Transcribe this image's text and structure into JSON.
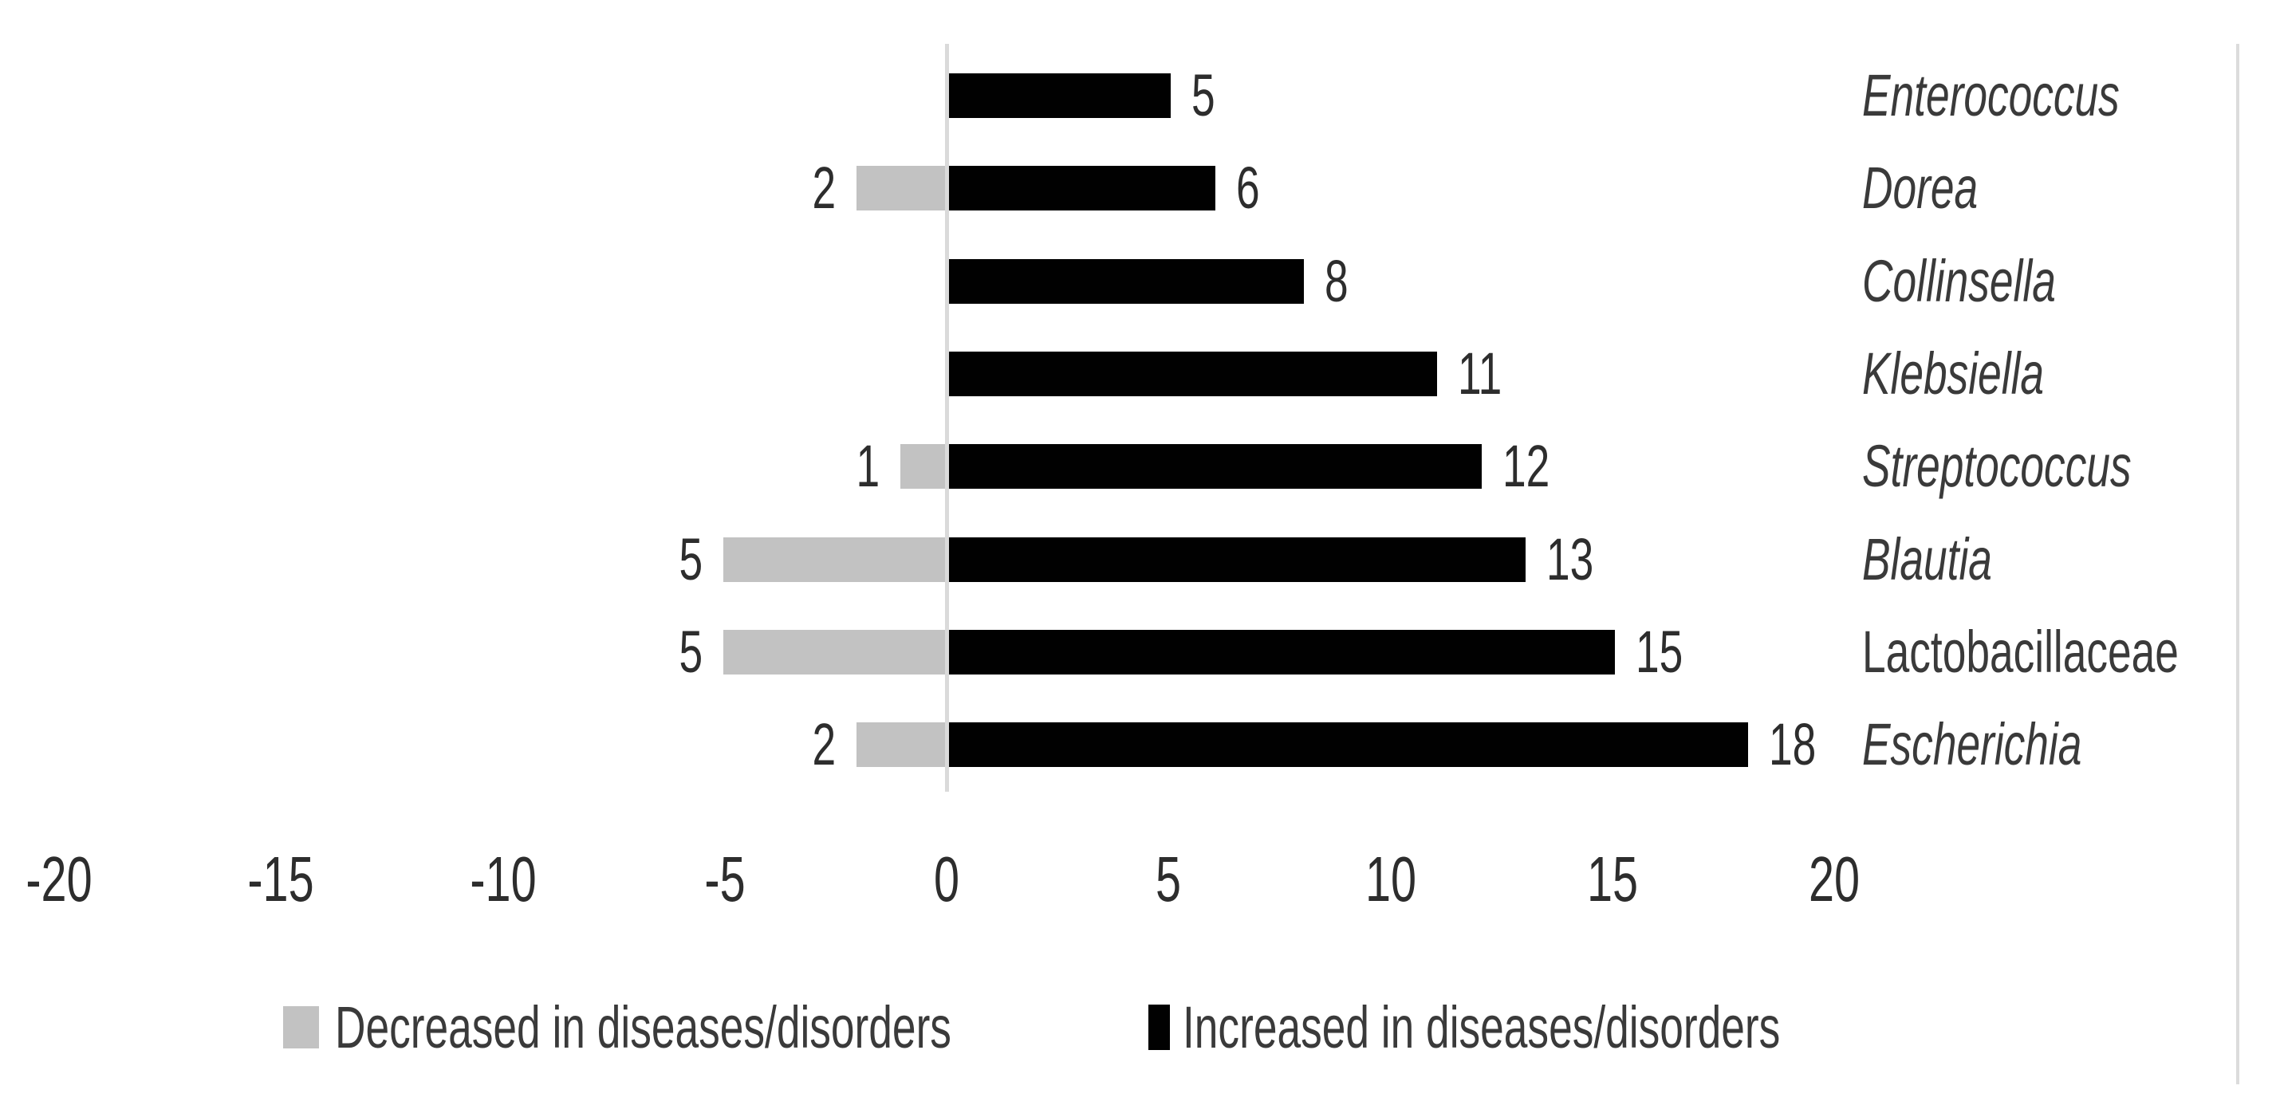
{
  "chart_data": {
    "type": "bar",
    "orientation": "horizontal",
    "title": "",
    "xlabel": "",
    "ylabel": "",
    "categories": [
      "Enterococcus",
      "Dorea",
      "Collinsella",
      "Klebsiella",
      "Streptococcus",
      "Blautia",
      "Lactobacillaceae",
      "Escherichia"
    ],
    "categories_italic": [
      true,
      true,
      true,
      true,
      true,
      true,
      false,
      true
    ],
    "series": [
      {
        "name": "Decreased in diseases/disorders",
        "color": "#c2c2c2",
        "direction": "negative",
        "values": [
          0,
          -2,
          0,
          0,
          -1,
          -5,
          -5,
          -2
        ],
        "data_labels": [
          null,
          "2",
          null,
          null,
          "1",
          "5",
          "5",
          "2"
        ]
      },
      {
        "name": "Increased in diseases/disorders",
        "color": "#010101",
        "direction": "positive",
        "values": [
          5,
          6,
          8,
          11,
          12,
          13,
          15,
          18
        ],
        "data_labels": [
          "5",
          "6",
          "8",
          "11",
          "12",
          "13",
          "15",
          "18"
        ]
      }
    ],
    "x_ticks": [
      "-20",
      "-15",
      "-10",
      "-5",
      "0",
      "5",
      "10",
      "15",
      "20"
    ],
    "x_tick_values": [
      -20,
      -15,
      -10,
      -5,
      0,
      5,
      10,
      15,
      20
    ],
    "xlim": [
      -20,
      20
    ],
    "grid": false,
    "legend_position": "bottom",
    "axis_line_color": "#dadada",
    "border_line_color": "#dcdcdc",
    "text_color": "#3a3a3a",
    "background": "#ffffff"
  }
}
